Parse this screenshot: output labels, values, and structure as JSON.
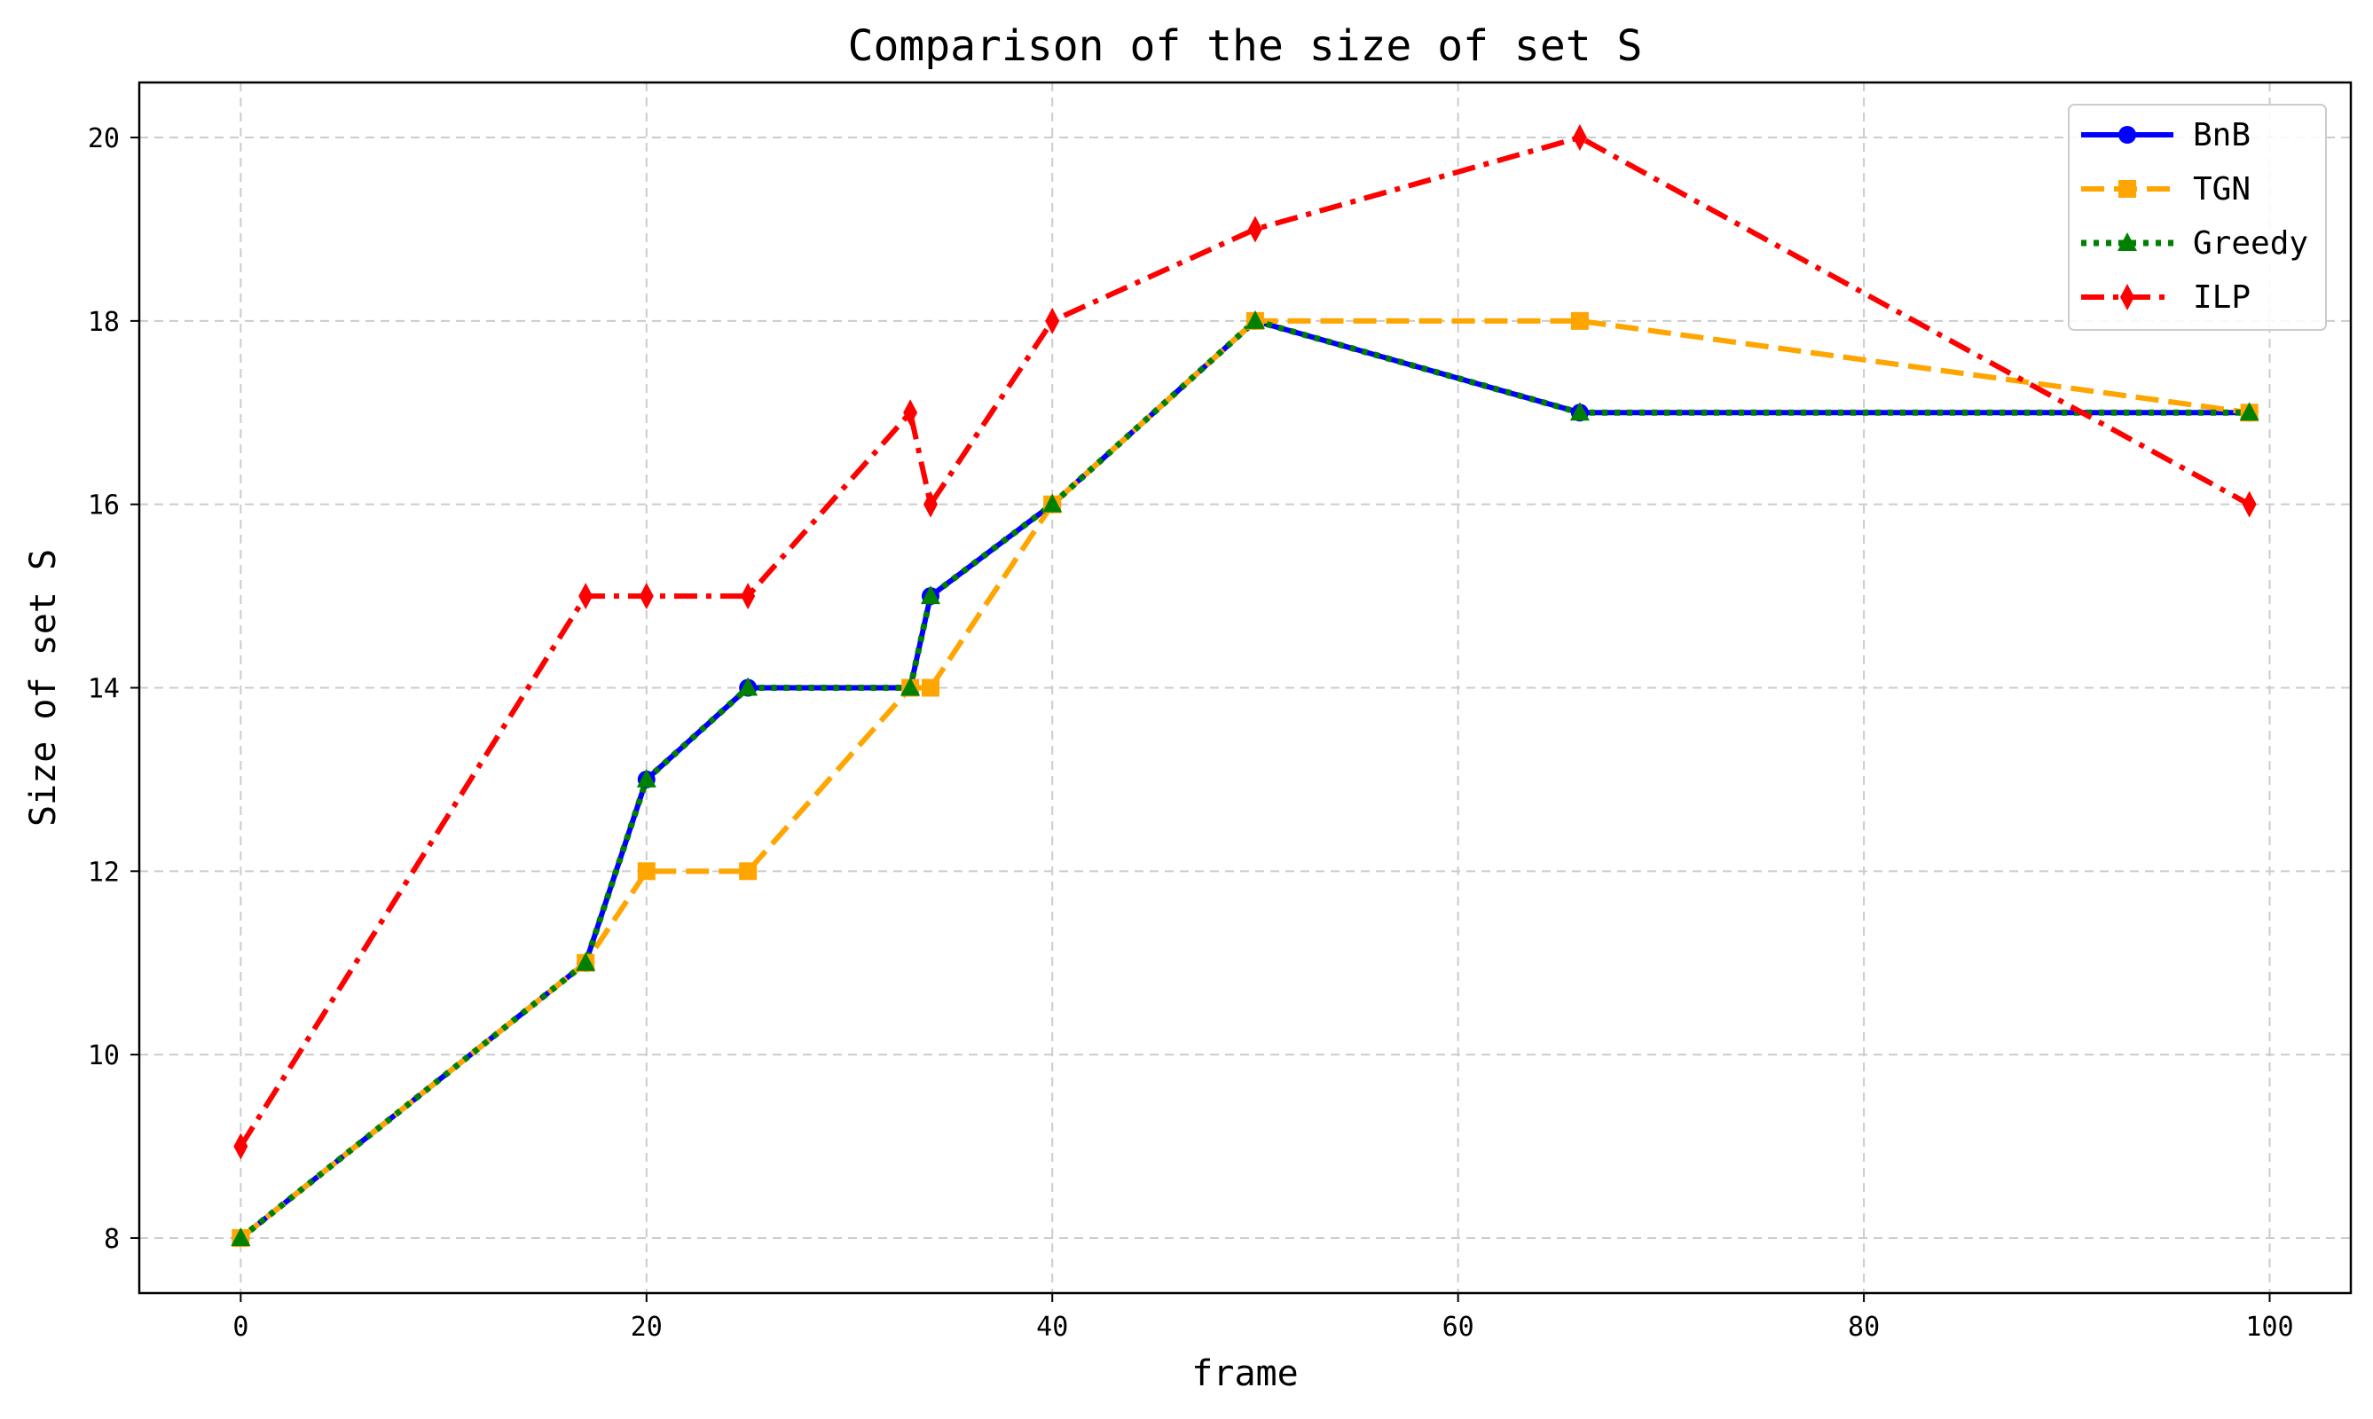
{
  "chart_data": {
    "type": "line",
    "title": "Comparison of the size of set S",
    "xlabel": "frame",
    "ylabel": "Size of set S",
    "xlim": [
      -5,
      104
    ],
    "ylim": [
      7.4,
      20.6
    ],
    "xticks": [
      0,
      20,
      40,
      60,
      80,
      100
    ],
    "yticks": [
      8,
      10,
      12,
      14,
      16,
      18,
      20
    ],
    "grid": true,
    "legend_position": "top-right",
    "series": [
      {
        "name": "BnB",
        "color": "#0000ff",
        "linestyle": "solid",
        "marker": "circle",
        "x": [
          0,
          17,
          20,
          25,
          33,
          34,
          40,
          50,
          66,
          99
        ],
        "y": [
          8,
          11,
          13,
          14,
          14,
          15,
          16,
          18,
          17,
          17
        ]
      },
      {
        "name": "TGN",
        "color": "#ffa500",
        "linestyle": "dashed",
        "marker": "square",
        "x": [
          0,
          17,
          20,
          25,
          33,
          34,
          40,
          50,
          66,
          99
        ],
        "y": [
          8,
          11,
          12,
          12,
          14,
          14,
          16,
          18,
          18,
          17
        ]
      },
      {
        "name": "Greedy",
        "color": "#008000",
        "linestyle": "dotted",
        "marker": "triangle",
        "x": [
          0,
          17,
          20,
          25,
          33,
          34,
          40,
          50,
          66,
          99
        ],
        "y": [
          8,
          11,
          13,
          14,
          14,
          15,
          16,
          18,
          17,
          17
        ]
      },
      {
        "name": "ILP",
        "color": "#ff0000",
        "linestyle": "dashdot",
        "marker": "diamond",
        "x": [
          0,
          17,
          20,
          25,
          33,
          34,
          40,
          50,
          66,
          99
        ],
        "y": [
          9,
          15,
          15,
          15,
          17,
          16,
          18,
          19,
          20,
          16
        ]
      }
    ]
  }
}
